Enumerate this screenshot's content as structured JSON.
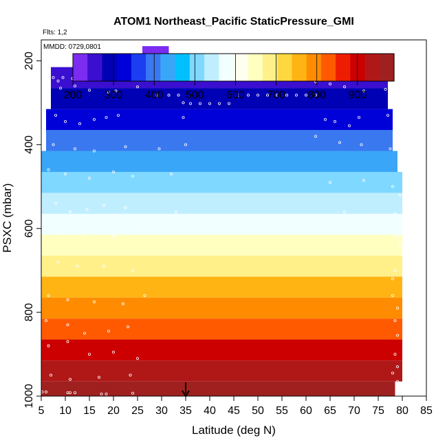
{
  "chart_data": {
    "type": "heatmap",
    "title": "ATOM1 Northeast_Pacific StaticPressure_GMI",
    "flights_label": "Flts: 1,2",
    "date_label": "MMDD: 0729,0801",
    "xlabel": "Latitude (deg N)",
    "ylabel": "PSXC (mbar)",
    "xlim": [
      5,
      85
    ],
    "ylim": [
      1000,
      150
    ],
    "x_ticks": [
      5,
      10,
      15,
      20,
      25,
      30,
      35,
      40,
      45,
      50,
      55,
      60,
      65,
      70,
      75,
      80,
      85
    ],
    "y_ticks": [
      200,
      400,
      600,
      800,
      1000
    ],
    "colorbar": {
      "min": 200,
      "max": 990,
      "ticks": [
        200,
        300,
        400,
        500,
        600,
        700,
        800,
        900
      ],
      "colors": [
        "#7b2cf0",
        "#3a0fd0",
        "#0000b4",
        "#0000d8",
        "#1a3ef0",
        "#3a78f0",
        "#3aa6f8",
        "#00c0ff",
        "#7fd8ff",
        "#bfeeff",
        "#f2ffff",
        "#fffff0",
        "#ffffc0",
        "#fff08a",
        "#ffd840",
        "#ffb414",
        "#ff8c00",
        "#ff5a00",
        "#ee1c00",
        "#cc0000",
        "#b01818",
        "#a02020"
      ]
    },
    "bands": [
      {
        "p_top": 165,
        "p_bot": 215,
        "x_min": 26.0,
        "x_max": 31.5,
        "value": 200
      },
      {
        "p_top": 215,
        "p_bot": 265,
        "x_min": 7.0,
        "x_max": 77.0,
        "value": 250
      },
      {
        "p_top": 265,
        "p_bot": 315,
        "x_min": 7.0,
        "x_max": 77.0,
        "value": 290
      },
      {
        "p_top": 315,
        "p_bot": 365,
        "x_min": 6.0,
        "x_max": 78.0,
        "value": 340
      },
      {
        "p_top": 365,
        "p_bot": 415,
        "x_min": 6.0,
        "x_max": 78.0,
        "value": 390
      },
      {
        "p_top": 415,
        "p_bot": 465,
        "x_min": 5.0,
        "x_max": 79.0,
        "value": 440
      },
      {
        "p_top": 465,
        "p_bot": 515,
        "x_min": 5.0,
        "x_max": 80.0,
        "value": 490
      },
      {
        "p_top": 515,
        "p_bot": 565,
        "x_min": 5.0,
        "x_max": 80.0,
        "value": 535
      },
      {
        "p_top": 565,
        "p_bot": 615,
        "x_min": 5.0,
        "x_max": 80.0,
        "value": 585
      },
      {
        "p_top": 615,
        "p_bot": 665,
        "x_min": 5.0,
        "x_max": 80.0,
        "value": 635
      },
      {
        "p_top": 665,
        "p_bot": 715,
        "x_min": 5.0,
        "x_max": 80.0,
        "value": 690
      },
      {
        "p_top": 715,
        "p_bot": 765,
        "x_min": 5.0,
        "x_max": 80.0,
        "value": 740
      },
      {
        "p_top": 765,
        "p_bot": 815,
        "x_min": 5.0,
        "x_max": 80.0,
        "value": 790
      },
      {
        "p_top": 815,
        "p_bot": 865,
        "x_min": 5.0,
        "x_max": 80.0,
        "value": 840
      },
      {
        "p_top": 865,
        "p_bot": 915,
        "x_min": 5.0,
        "x_max": 80.0,
        "value": 890
      },
      {
        "p_top": 915,
        "p_bot": 965,
        "x_min": 5.0,
        "x_max": 80.0,
        "value": 940
      },
      {
        "p_top": 965,
        "p_bot": 1005,
        "x_min": 5.0,
        "x_max": 78.5,
        "value": 985
      }
    ],
    "flight_track": [
      [
        26.5,
        200
      ],
      [
        27.5,
        200
      ],
      [
        28.5,
        200
      ],
      [
        29.5,
        200
      ],
      [
        30.5,
        200
      ],
      [
        7.5,
        240
      ],
      [
        8.5,
        248
      ],
      [
        9.5,
        240
      ],
      [
        11.5,
        242
      ],
      [
        13.5,
        240
      ],
      [
        14.0,
        235
      ],
      [
        21.0,
        220
      ],
      [
        31.5,
        222
      ],
      [
        9.0,
        265
      ],
      [
        12.0,
        260
      ],
      [
        15.0,
        270
      ],
      [
        19.0,
        275
      ],
      [
        20.5,
        272
      ],
      [
        25.0,
        262
      ],
      [
        29.0,
        282
      ],
      [
        31.5,
        282
      ],
      [
        33.5,
        282
      ],
      [
        62.0,
        250
      ],
      [
        65.0,
        255
      ],
      [
        68.0,
        262
      ],
      [
        72.0,
        272
      ],
      [
        76.5,
        268
      ],
      [
        34.5,
        300
      ],
      [
        36.0,
        302
      ],
      [
        38.0,
        302
      ],
      [
        40.0,
        302
      ],
      [
        42.0,
        302
      ],
      [
        44.0,
        302
      ],
      [
        46.0,
        282
      ],
      [
        48.0,
        282
      ],
      [
        50.0,
        282
      ],
      [
        52.0,
        282
      ],
      [
        54.0,
        282
      ],
      [
        56.0,
        282
      ],
      [
        58.0,
        282
      ],
      [
        60.0,
        282
      ],
      [
        62.0,
        282
      ],
      [
        8.0,
        330
      ],
      [
        10.0,
        345
      ],
      [
        13.0,
        350
      ],
      [
        16.0,
        340
      ],
      [
        18.5,
        335
      ],
      [
        21.0,
        330
      ],
      [
        34.5,
        335
      ],
      [
        64.0,
        340
      ],
      [
        66.0,
        345
      ],
      [
        69.0,
        355
      ],
      [
        71.0,
        335
      ],
      [
        77.0,
        330
      ],
      [
        7.5,
        400
      ],
      [
        12.0,
        410
      ],
      [
        16.0,
        415
      ],
      [
        22.5,
        405
      ],
      [
        29.5,
        410
      ],
      [
        35.0,
        400
      ],
      [
        62.0,
        380
      ],
      [
        67.0,
        395
      ],
      [
        71.5,
        400
      ],
      [
        77.5,
        410
      ],
      [
        6.5,
        460
      ],
      [
        10.0,
        470
      ],
      [
        15.0,
        480
      ],
      [
        20.0,
        465
      ],
      [
        24.0,
        475
      ],
      [
        32.0,
        470
      ],
      [
        65.0,
        490
      ],
      [
        72.0,
        485
      ],
      [
        78.0,
        500
      ],
      [
        79.5,
        520
      ],
      [
        8.0,
        540
      ],
      [
        11.0,
        560
      ],
      [
        14.5,
        555
      ],
      [
        18.0,
        545
      ],
      [
        22.5,
        550
      ],
      [
        33.0,
        560
      ],
      [
        68.0,
        560
      ],
      [
        76.0,
        570
      ],
      [
        78.5,
        565
      ],
      [
        6.0,
        600
      ],
      [
        9.0,
        610
      ],
      [
        14.0,
        615
      ],
      [
        20.0,
        620
      ],
      [
        25.0,
        600
      ],
      [
        79.0,
        620
      ],
      [
        79.5,
        640
      ],
      [
        8.5,
        680
      ],
      [
        12.5,
        690
      ],
      [
        18.0,
        690
      ],
      [
        24.0,
        700
      ],
      [
        78.5,
        700
      ],
      [
        78.0,
        720
      ],
      [
        6.5,
        760
      ],
      [
        10.5,
        770
      ],
      [
        16.0,
        775
      ],
      [
        22.0,
        780
      ],
      [
        26.5,
        760
      ],
      [
        78.0,
        760
      ],
      [
        79.0,
        790
      ],
      [
        6.0,
        820
      ],
      [
        10.5,
        830
      ],
      [
        14.0,
        850
      ],
      [
        19.0,
        845
      ],
      [
        23.0,
        835
      ],
      [
        78.5,
        820
      ],
      [
        79.0,
        855
      ],
      [
        6.5,
        880
      ],
      [
        10.5,
        870
      ],
      [
        15.0,
        900
      ],
      [
        20.0,
        895
      ],
      [
        25.0,
        910
      ],
      [
        78.5,
        900
      ],
      [
        79.0,
        930
      ],
      [
        7.0,
        950
      ],
      [
        11.0,
        960
      ],
      [
        17.0,
        955
      ],
      [
        23.5,
        950
      ],
      [
        78.0,
        945
      ],
      [
        79.0,
        965
      ],
      [
        5.2,
        990
      ],
      [
        6.0,
        990
      ],
      [
        10.5,
        992
      ],
      [
        11.0,
        992
      ],
      [
        12.0,
        992
      ],
      [
        17.5,
        995
      ],
      [
        18.5,
        995
      ],
      [
        24.0,
        993
      ]
    ],
    "marker": {
      "x": 35,
      "p": 1000
    }
  }
}
